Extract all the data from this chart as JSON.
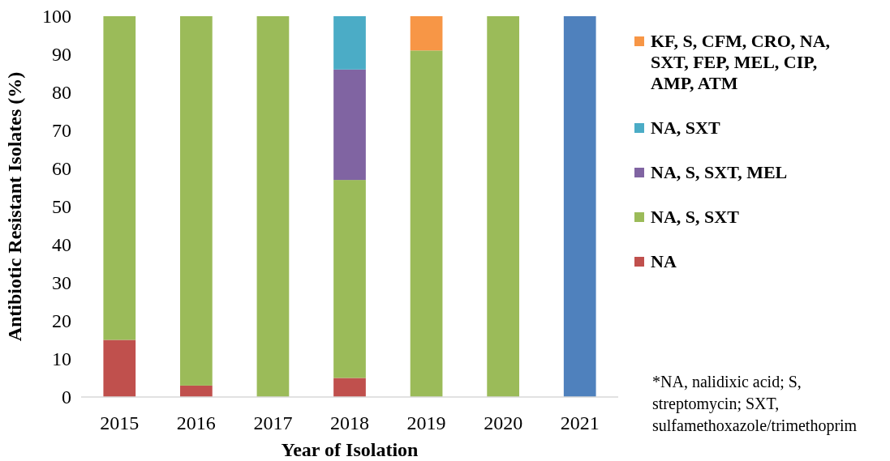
{
  "chart_data": {
    "type": "bar",
    "stacked": true,
    "xlabel": "Year of Isolation",
    "ylabel": "Antibiotic Resistant Isolates (%)",
    "categories": [
      "2015",
      "2016",
      "2017",
      "2018",
      "2019",
      "2020",
      "2021"
    ],
    "series": [
      {
        "name": "NA",
        "color": "#c0504d",
        "values": [
          15,
          3,
          0,
          5,
          0,
          0,
          0
        ]
      },
      {
        "name": "NA, S, SXT",
        "color": "#9bbb59",
        "values": [
          85,
          97,
          100,
          52,
          91,
          100,
          0
        ]
      },
      {
        "name": "NA, S, SXT, MEL",
        "color": "#8064a2",
        "values": [
          0,
          0,
          0,
          29,
          0,
          0,
          0
        ]
      },
      {
        "name": "NA, SXT",
        "color": "#4bacc6",
        "values": [
          0,
          0,
          0,
          14,
          0,
          0,
          0
        ]
      },
      {
        "name": "KF, S, CFM, CRO, NA, SXT, FEP, MEL, CIP, AMP, ATM",
        "color": "#f79646",
        "values": [
          0,
          0,
          0,
          0,
          9,
          0,
          0
        ]
      },
      {
        "color": "#4f81bd",
        "values": [
          0,
          0,
          0,
          0,
          0,
          0,
          100
        ]
      }
    ],
    "ylim": [
      0,
      100
    ],
    "yticks": [
      0,
      10,
      20,
      30,
      40,
      50,
      60,
      70,
      80,
      90,
      100
    ],
    "grid": false,
    "legend": "right",
    "annotations": [
      "*NA, nalidixic acid; S, streptomycin; SXT, sulfamethoxazole/trimethoprim"
    ]
  }
}
